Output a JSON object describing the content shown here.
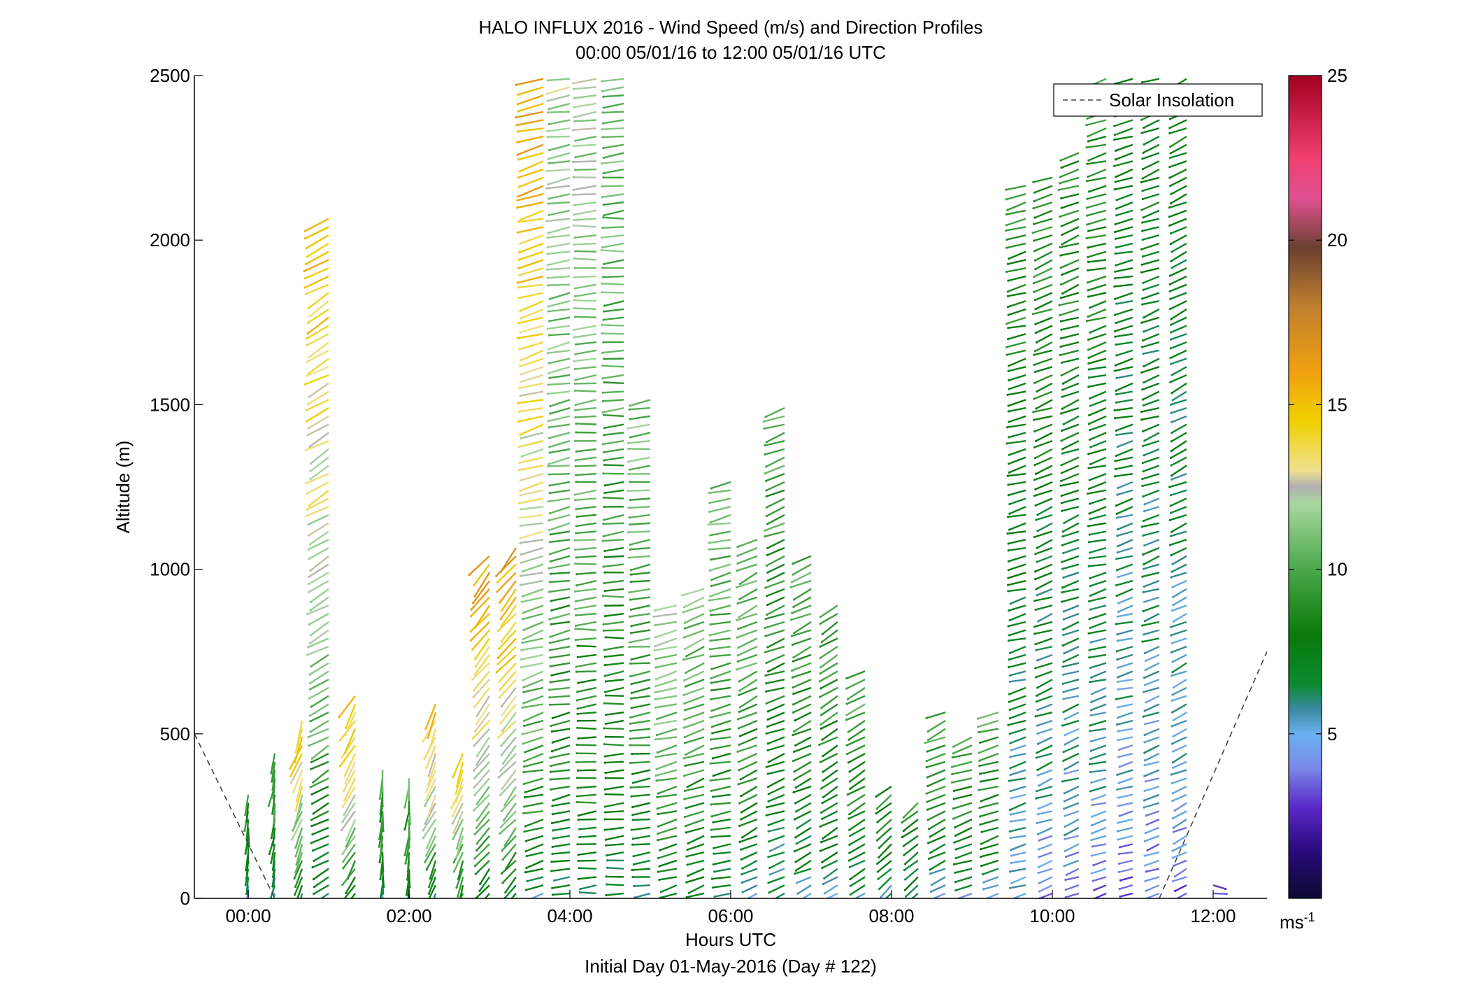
{
  "chart_data": {
    "type": "scatter",
    "title": "HALO INFLUX 2016 - Wind Speed (m/s) and Direction Profiles",
    "subtitle": "00:00 05/01/16 to 12:00 05/01/16  UTC",
    "xlabel": "Hours UTC",
    "xlabel2": "Initial Day 01-May-2016 (Day # 122)",
    "ylabel": "Altitude (m)",
    "xlim": [
      -0.67,
      12.67
    ],
    "ylim": [
      0,
      2500
    ],
    "xticks": [
      0,
      2,
      4,
      6,
      8,
      10,
      12
    ],
    "xtick_labels": [
      "00:00",
      "02:00",
      "04:00",
      "06:00",
      "08:00",
      "10:00",
      "12:00"
    ],
    "yticks": [
      0,
      500,
      1000,
      1500,
      2000,
      2500
    ],
    "ytick_labels": [
      "0",
      "500",
      "1000",
      "1500",
      "2000",
      "2500"
    ],
    "legend": {
      "label": "Solar Insolation",
      "placement": "top-right"
    },
    "colorbar": {
      "min": 0,
      "max": 25,
      "ticks": [
        5,
        10,
        15,
        20,
        25
      ],
      "tick_labels": [
        "5",
        "10",
        "15",
        "20",
        "25"
      ],
      "unit": "ms",
      "unit_exp": "-1"
    },
    "solar_insolation": {
      "left": [
        [
          -0.67,
          500
        ],
        [
          0.33,
          0
        ]
      ],
      "right": [
        [
          11.33,
          0
        ],
        [
          12.67,
          750
        ]
      ]
    },
    "profiles": [
      {
        "t": 0.0,
        "top": 330,
        "lo": 4,
        "hi": 9,
        "dir": 185
      },
      {
        "t": 0.33,
        "top": 450,
        "lo": 4,
        "hi": 10,
        "dir": 190
      },
      {
        "t": 0.67,
        "top": 550,
        "lo": 4,
        "hi": 15,
        "dir": 200
      },
      {
        "t": 1.0,
        "top": 2080,
        "lo": 5,
        "hi": 15,
        "dir": 240
      },
      {
        "t": 1.33,
        "top": 620,
        "lo": 5,
        "hi": 15,
        "dir": 210
      },
      {
        "t": 1.67,
        "top": 400,
        "lo": 5,
        "hi": 10,
        "dir": 185
      },
      {
        "t": 2.0,
        "top": 370,
        "lo": 5,
        "hi": 10,
        "dir": 185
      },
      {
        "t": 2.33,
        "top": 600,
        "lo": 5,
        "hi": 15,
        "dir": 205
      },
      {
        "t": 2.67,
        "top": 450,
        "lo": 5,
        "hi": 14,
        "dir": 200
      },
      {
        "t": 3.0,
        "top": 1060,
        "lo": 5,
        "hi": 16,
        "dir": 220
      },
      {
        "t": 3.33,
        "top": 1070,
        "lo": 5,
        "hi": 16,
        "dir": 220
      },
      {
        "t": 3.67,
        "top": 2490,
        "lo": 5,
        "hi": 16,
        "dir": 255
      },
      {
        "t": 4.0,
        "top": 2490,
        "lo": 6,
        "hi": 12,
        "dir": 260
      },
      {
        "t": 4.33,
        "top": 2490,
        "lo": 6,
        "hi": 12,
        "dir": 265
      },
      {
        "t": 4.67,
        "top": 2490,
        "lo": 6,
        "hi": 11,
        "dir": 265
      },
      {
        "t": 5.0,
        "top": 1520,
        "lo": 6,
        "hi": 11,
        "dir": 262
      },
      {
        "t": 5.33,
        "top": 900,
        "lo": 6,
        "hi": 12,
        "dir": 255
      },
      {
        "t": 5.67,
        "top": 950,
        "lo": 6,
        "hi": 11,
        "dir": 250
      },
      {
        "t": 6.0,
        "top": 1280,
        "lo": 6,
        "hi": 11,
        "dir": 258
      },
      {
        "t": 6.33,
        "top": 1100,
        "lo": 5,
        "hi": 11,
        "dir": 245
      },
      {
        "t": 6.67,
        "top": 1500,
        "lo": 5,
        "hi": 10,
        "dir": 250
      },
      {
        "t": 7.0,
        "top": 1060,
        "lo": 5,
        "hi": 10,
        "dir": 245
      },
      {
        "t": 7.33,
        "top": 900,
        "lo": 5,
        "hi": 10,
        "dir": 240
      },
      {
        "t": 7.67,
        "top": 700,
        "lo": 5,
        "hi": 10,
        "dir": 240
      },
      {
        "t": 8.0,
        "top": 350,
        "lo": 5,
        "hi": 9,
        "dir": 230
      },
      {
        "t": 8.33,
        "top": 300,
        "lo": 5,
        "hi": 9,
        "dir": 230
      },
      {
        "t": 8.67,
        "top": 580,
        "lo": 4,
        "hi": 10,
        "dir": 245
      },
      {
        "t": 9.0,
        "top": 500,
        "lo": 4,
        "hi": 10,
        "dir": 250
      },
      {
        "t": 9.33,
        "top": 580,
        "lo": 4,
        "hi": 10,
        "dir": 252
      },
      {
        "t": 9.67,
        "top": 2180,
        "lo": 4,
        "hi": 9,
        "dir": 255
      },
      {
        "t": 10.0,
        "top": 2200,
        "lo": 3,
        "hi": 9,
        "dir": 250
      },
      {
        "t": 10.33,
        "top": 2280,
        "lo": 3,
        "hi": 9,
        "dir": 250
      },
      {
        "t": 10.67,
        "top": 2490,
        "lo": 3,
        "hi": 9,
        "dir": 255
      },
      {
        "t": 11.0,
        "top": 2490,
        "lo": 3,
        "hi": 8,
        "dir": 255
      },
      {
        "t": 11.33,
        "top": 2490,
        "lo": 3,
        "hi": 8,
        "dir": 250
      },
      {
        "t": 11.67,
        "top": 2490,
        "lo": 3,
        "hi": 8,
        "dir": 245
      },
      {
        "t": 12.0,
        "top": 60,
        "lo": 2,
        "hi": 3,
        "dir": 100
      }
    ]
  }
}
